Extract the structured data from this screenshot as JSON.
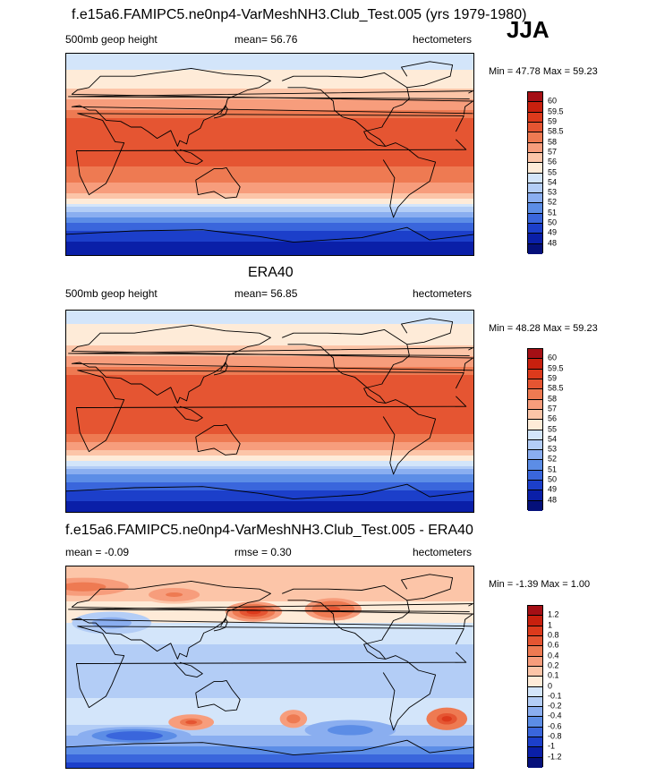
{
  "season": "JJA",
  "panels": [
    {
      "id": "model",
      "title": "f.e15a6.FAMIPC5.ne0np4-VarMeshNH3.Club_Test.005 (yrs 1979-1980)",
      "left_label": "500mb geop height",
      "center_label": "mean=  56.76",
      "units": "hectometers",
      "minmax": "Min =  47.78 Max =  59.23"
    },
    {
      "id": "obs",
      "title": "ERA40",
      "left_label": "500mb geop height",
      "center_label": "mean=  56.85",
      "units": "hectometers",
      "minmax": "Min =  48.28 Max =  59.23"
    },
    {
      "id": "diff",
      "title": "f.e15a6.FAMIPC5.ne0np4-VarMeshNH3.Club_Test.005 - ERA40",
      "left_label": "mean =  -0.09",
      "center_label": "rmse =   0.30",
      "units": "hectometers",
      "minmax": "Min = -1.39 Max =   1.00"
    }
  ],
  "chart_data": [
    {
      "type": "heatmap",
      "title": "f.e15a6.FAMIPC5.ne0np4-VarMeshNH3.Club_Test.005 (yrs 1979-1980)",
      "variable": "500mb geop height",
      "units": "hectometers",
      "mean": 56.76,
      "min": 47.78,
      "max": 59.23,
      "levels": [
        "60",
        "59.5",
        "59",
        "58.5",
        "58",
        "57",
        "56",
        "55",
        "54",
        "53",
        "52",
        "51",
        "50",
        "49",
        "48"
      ],
      "colors": [
        "#a50f15",
        "#c8200e",
        "#dc3a1c",
        "#e55532",
        "#ee7a52",
        "#f79d7c",
        "#fcc5a8",
        "#feebd8",
        "#d3e5fa",
        "#b3cdf6",
        "#8aaef0",
        "#5c8de6",
        "#3a66dc",
        "#1c3fca",
        "#0a1fa8",
        "#05107a"
      ],
      "lat_bands": [
        {
          "lat": -90,
          "value": 48.0
        },
        {
          "lat": -80,
          "value": 48.8
        },
        {
          "lat": -70,
          "value": 49.6
        },
        {
          "lat": -60,
          "value": 51.0
        },
        {
          "lat": -50,
          "value": 53.0
        },
        {
          "lat": -40,
          "value": 55.8
        },
        {
          "lat": -30,
          "value": 57.5
        },
        {
          "lat": -20,
          "value": 58.4
        },
        {
          "lat": 0,
          "value": 58.6
        },
        {
          "lat": 20,
          "value": 58.9
        },
        {
          "lat": 30,
          "value": 58.8
        },
        {
          "lat": 40,
          "value": 58.0
        },
        {
          "lat": 50,
          "value": 57.0
        },
        {
          "lat": 60,
          "value": 56.0
        },
        {
          "lat": 70,
          "value": 55.4
        },
        {
          "lat": 80,
          "value": 54.8
        },
        {
          "lat": 90,
          "value": 54.4
        }
      ]
    },
    {
      "type": "heatmap",
      "title": "ERA40",
      "variable": "500mb geop height",
      "units": "hectometers",
      "mean": 56.85,
      "min": 48.28,
      "max": 59.23,
      "levels": [
        "60",
        "59.5",
        "59",
        "58.5",
        "58",
        "57",
        "56",
        "55",
        "54",
        "53",
        "52",
        "51",
        "50",
        "49",
        "48"
      ],
      "colors": [
        "#a50f15",
        "#c8200e",
        "#dc3a1c",
        "#e55532",
        "#ee7a52",
        "#f79d7c",
        "#fcc5a8",
        "#feebd8",
        "#d3e5fa",
        "#b3cdf6",
        "#8aaef0",
        "#5c8de6",
        "#3a66dc",
        "#1c3fca",
        "#0a1fa8",
        "#05107a"
      ],
      "lat_bands": [
        {
          "lat": -90,
          "value": 48.3
        },
        {
          "lat": -80,
          "value": 49.0
        },
        {
          "lat": -70,
          "value": 49.8
        },
        {
          "lat": -60,
          "value": 51.2
        },
        {
          "lat": -50,
          "value": 53.2
        },
        {
          "lat": -40,
          "value": 55.9
        },
        {
          "lat": -30,
          "value": 57.6
        },
        {
          "lat": -20,
          "value": 58.5
        },
        {
          "lat": 0,
          "value": 58.7
        },
        {
          "lat": 20,
          "value": 58.9
        },
        {
          "lat": 30,
          "value": 58.8
        },
        {
          "lat": 40,
          "value": 58.0
        },
        {
          "lat": 50,
          "value": 57.0
        },
        {
          "lat": 60,
          "value": 56.0
        },
        {
          "lat": 70,
          "value": 55.4
        },
        {
          "lat": 80,
          "value": 54.9
        },
        {
          "lat": 90,
          "value": 54.6
        }
      ]
    },
    {
      "type": "heatmap",
      "title": "f.e15a6.FAMIPC5.ne0np4-VarMeshNH3.Club_Test.005 - ERA40",
      "units": "hectometers",
      "mean": -0.09,
      "rmse": 0.3,
      "min": -1.39,
      "max": 1.0,
      "levels": [
        "1.2",
        "1",
        "0.8",
        "0.6",
        "0.4",
        "0.2",
        "0.1",
        "0",
        "-0.1",
        "-0.2",
        "-0.4",
        "-0.6",
        "-0.8",
        "-1",
        "-1.2"
      ],
      "colors": [
        "#a50f15",
        "#c8200e",
        "#dc3a1c",
        "#e55532",
        "#ee7a52",
        "#f79d7c",
        "#fcc5a8",
        "#feebd8",
        "#d3e5fa",
        "#b3cdf6",
        "#8aaef0",
        "#5c8de6",
        "#3a66dc",
        "#1c3fca",
        "#0a1fa8",
        "#05107a"
      ],
      "lat_bands": [
        {
          "lat": -90,
          "value": -1.0
        },
        {
          "lat": -80,
          "value": -0.7
        },
        {
          "lat": -70,
          "value": -0.4
        },
        {
          "lat": -60,
          "value": -0.2
        },
        {
          "lat": -40,
          "value": 0.0
        },
        {
          "lat": -20,
          "value": -0.15
        },
        {
          "lat": 0,
          "value": -0.12
        },
        {
          "lat": 20,
          "value": -0.1
        },
        {
          "lat": 40,
          "value": 0.0
        },
        {
          "lat": 60,
          "value": 0.1
        },
        {
          "lat": 75,
          "value": 0.2
        },
        {
          "lat": 90,
          "value": 0.1
        }
      ],
      "anomalies": [
        {
          "lon": 165,
          "lat": 50,
          "value": 0.8,
          "rlon": 25,
          "rlat": 9
        },
        {
          "lon": 235,
          "lat": 52,
          "value": 0.7,
          "rlon": 25,
          "rlat": 10
        },
        {
          "lon": 15,
          "lat": 72,
          "value": 0.5,
          "rlon": 40,
          "rlat": 8
        },
        {
          "lon": 95,
          "lat": 65,
          "value": 0.4,
          "rlon": 30,
          "rlat": 8
        },
        {
          "lon": 110,
          "lat": -48,
          "value": 0.6,
          "rlon": 20,
          "rlat": 7
        },
        {
          "lon": 200,
          "lat": -45,
          "value": 0.5,
          "rlon": 12,
          "rlat": 8
        },
        {
          "lon": 335,
          "lat": -45,
          "value": 0.9,
          "rlon": 18,
          "rlat": 10
        },
        {
          "lon": 250,
          "lat": -55,
          "value": -0.6,
          "rlon": 40,
          "rlat": 9
        },
        {
          "lon": 60,
          "lat": -60,
          "value": -0.8,
          "rlon": 50,
          "rlat": 8
        },
        {
          "lon": 40,
          "lat": 40,
          "value": -0.3,
          "rlon": 35,
          "rlat": 10
        }
      ]
    }
  ]
}
